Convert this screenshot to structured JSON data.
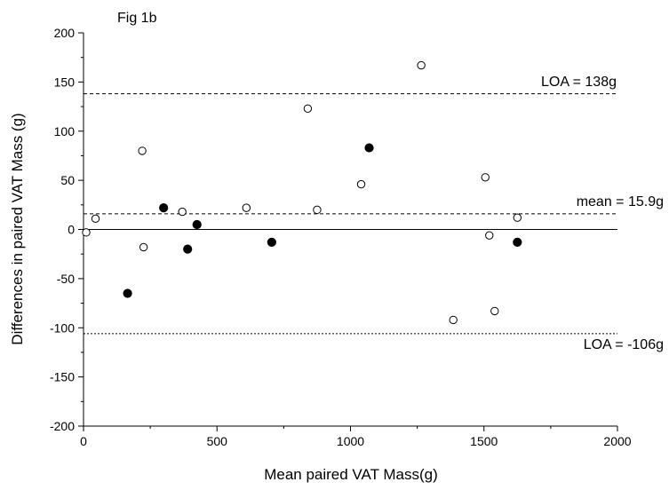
{
  "chart_data": {
    "type": "scatter",
    "title": "Fig 1b",
    "xlabel": "Mean paired VAT Mass(g)",
    "ylabel": "Differences in paired  VAT Mass (g)",
    "xlim": [
      0,
      2000
    ],
    "ylim": [
      -200,
      200
    ],
    "x_ticks": [
      "0",
      "500",
      "1000",
      "1500",
      "2000"
    ],
    "y_ticks": [
      "200",
      "150",
      "100",
      "50",
      "0",
      "-50",
      "-100",
      "-150",
      "-200"
    ],
    "x_tick_values": [
      0,
      500,
      1000,
      1500,
      2000
    ],
    "y_tick_values": [
      200,
      150,
      100,
      50,
      0,
      -50,
      -100,
      -150,
      -200
    ],
    "grid": false,
    "series": [
      {
        "marker": "open-circle",
        "points": [
          {
            "x": 10,
            "y": -3
          },
          {
            "x": 45,
            "y": 11
          },
          {
            "x": 220,
            "y": 80
          },
          {
            "x": 225,
            "y": -18
          },
          {
            "x": 370,
            "y": 18
          },
          {
            "x": 610,
            "y": 22
          },
          {
            "x": 840,
            "y": 123
          },
          {
            "x": 875,
            "y": 20
          },
          {
            "x": 1040,
            "y": 46
          },
          {
            "x": 1265,
            "y": 167
          },
          {
            "x": 1385,
            "y": -92
          },
          {
            "x": 1505,
            "y": 53
          },
          {
            "x": 1520,
            "y": -6
          },
          {
            "x": 1540,
            "y": -83
          },
          {
            "x": 1625,
            "y": 12
          }
        ]
      },
      {
        "marker": "filled-circle",
        "points": [
          {
            "x": 165,
            "y": -65
          },
          {
            "x": 300,
            "y": 22
          },
          {
            "x": 390,
            "y": -20
          },
          {
            "x": 425,
            "y": 5
          },
          {
            "x": 705,
            "y": -13
          },
          {
            "x": 1070,
            "y": 83
          },
          {
            "x": 1625,
            "y": -13
          }
        ]
      }
    ],
    "reference_lines": [
      {
        "label": "LOA = 138g",
        "y": 138,
        "style": "dashed"
      },
      {
        "label": "mean = 15.9g",
        "y": 15.9,
        "style": "dashed"
      },
      {
        "label": "LOA = -106g",
        "y": -106,
        "style": "dotted"
      },
      {
        "y": 0,
        "style": "solid"
      }
    ]
  }
}
